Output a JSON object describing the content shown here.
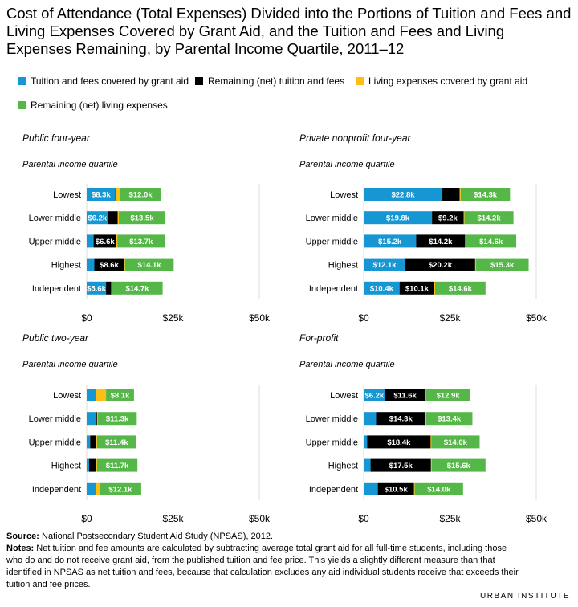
{
  "title": "Cost of Attendance (Total Expenses) Divided into the Portions of Tuition and Fees and Living Expenses Covered by Grant Aid, and the Tuition and Fees and Living Expenses Remaining, by Parental Income Quartile, 2011–12",
  "legend": [
    {
      "label": "Tuition and fees covered by grant aid",
      "color": "#1696d2"
    },
    {
      "label": "Remaining (net) tuition and fees",
      "color": "#000000"
    },
    {
      "label": "Living expenses covered by grant aid",
      "color": "#fdbf11"
    },
    {
      "label": "Remaining (net) living expenses",
      "color": "#55b748"
    }
  ],
  "chart_data": [
    {
      "type": "bar",
      "title": "Public four-year",
      "ylabel": "Parental income quartile",
      "categories": [
        "Lowest",
        "Lower middle",
        "Upper middle",
        "Highest",
        "Independent"
      ],
      "xticks": [
        "$0",
        "$25k",
        "$50k"
      ],
      "xlim": [
        0,
        50
      ],
      "series": [
        {
          "name": "Tuition and fees covered by grant aid",
          "values": [
            8.3,
            6.2,
            2.0,
            2.2,
            5.6
          ],
          "labels": [
            "$8.3k",
            "$6.2k",
            "",
            "",
            "$5.6k"
          ]
        },
        {
          "name": "Remaining (net) tuition and fees",
          "values": [
            0.3,
            2.8,
            6.6,
            8.6,
            1.5
          ],
          "labels": [
            "",
            "",
            "$6.6k",
            "$8.6k",
            ""
          ]
        },
        {
          "name": "Living expenses covered by grant aid",
          "values": [
            1.0,
            0.3,
            0.3,
            0.3,
            0.2
          ],
          "labels": [
            "",
            "",
            "",
            "",
            ""
          ]
        },
        {
          "name": "Remaining (net) living expenses",
          "values": [
            12.0,
            13.5,
            13.7,
            14.1,
            14.7
          ],
          "labels": [
            "$12.0k",
            "$13.5k",
            "$13.7k",
            "$14.1k",
            "$14.7k"
          ]
        }
      ]
    },
    {
      "type": "bar",
      "title": "Private nonprofit four-year",
      "ylabel": "Parental income quartile",
      "categories": [
        "Lowest",
        "Lower middle",
        "Upper middle",
        "Highest",
        "Independent"
      ],
      "xticks": [
        "$0",
        "$25k",
        "$50k"
      ],
      "xlim": [
        0,
        50
      ],
      "series": [
        {
          "name": "Tuition and fees covered by grant aid",
          "values": [
            22.8,
            19.8,
            15.2,
            12.1,
            10.4
          ],
          "labels": [
            "$22.8k",
            "$19.8k",
            "$15.2k",
            "$12.1k",
            "$10.4k"
          ]
        },
        {
          "name": "Remaining (net) tuition and fees",
          "values": [
            5.0,
            9.2,
            14.2,
            20.2,
            10.1
          ],
          "labels": [
            "",
            "$9.2k",
            "$14.2k",
            "$20.2k",
            "$10.1k"
          ]
        },
        {
          "name": "Living expenses covered by grant aid",
          "values": [
            0.3,
            0.2,
            0.2,
            0.2,
            0.2
          ],
          "labels": [
            "",
            "",
            "",
            "",
            ""
          ]
        },
        {
          "name": "Remaining (net) living expenses",
          "values": [
            14.3,
            14.2,
            14.6,
            15.3,
            14.6
          ],
          "labels": [
            "$14.3k",
            "$14.2k",
            "$14.6k",
            "$15.3k",
            "$14.6k"
          ]
        }
      ]
    },
    {
      "type": "bar",
      "title": "Public two-year",
      "ylabel": "Parental income quartile",
      "categories": [
        "Lowest",
        "Lower middle",
        "Upper middle",
        "Highest",
        "Independent"
      ],
      "xticks": [
        "$0",
        "$25k",
        "$50k"
      ],
      "xlim": [
        0,
        50
      ],
      "series": [
        {
          "name": "Tuition and fees covered by grant aid",
          "values": [
            2.7,
            2.7,
            1.0,
            0.7,
            2.6
          ],
          "labels": [
            "",
            "",
            "",
            "",
            ""
          ]
        },
        {
          "name": "Remaining (net) tuition and fees",
          "values": [
            0.1,
            0.3,
            1.8,
            2.1,
            0.1
          ],
          "labels": [
            "",
            "",
            "",
            "",
            ""
          ]
        },
        {
          "name": "Living expenses covered by grant aid",
          "values": [
            2.8,
            0.2,
            0.2,
            0.2,
            1.0
          ],
          "labels": [
            "",
            "",
            "",
            "",
            ""
          ]
        },
        {
          "name": "Remaining (net) living expenses",
          "values": [
            8.1,
            11.3,
            11.4,
            11.7,
            12.1
          ],
          "labels": [
            "$8.1k",
            "$11.3k",
            "$11.4k",
            "$11.7k",
            "$12.1k"
          ]
        }
      ]
    },
    {
      "type": "bar",
      "title": "For-profit",
      "ylabel": "Parental income quartile",
      "categories": [
        "Lowest",
        "Lower middle",
        "Upper middle",
        "Highest",
        "Independent"
      ],
      "xticks": [
        "$0",
        "$25k",
        "$50k"
      ],
      "xlim": [
        0,
        50
      ],
      "series": [
        {
          "name": "Tuition and fees covered by grant aid",
          "values": [
            6.2,
            3.6,
            1.0,
            2.0,
            4.1
          ],
          "labels": [
            "$6.2k",
            "",
            "",
            "",
            ""
          ]
        },
        {
          "name": "Remaining (net) tuition and fees",
          "values": [
            11.6,
            14.3,
            18.4,
            17.5,
            10.5
          ],
          "labels": [
            "$11.6k",
            "$14.3k",
            "$18.4k",
            "$17.5k",
            "$10.5k"
          ]
        },
        {
          "name": "Living expenses covered by grant aid",
          "values": [
            0.2,
            0.2,
            0.2,
            0.2,
            0.2
          ],
          "labels": [
            "",
            "",
            "",
            "",
            ""
          ]
        },
        {
          "name": "Remaining (net) living expenses",
          "values": [
            12.9,
            13.4,
            14.0,
            15.6,
            14.0
          ],
          "labels": [
            "$12.9k",
            "$13.4k",
            "$14.0k",
            "$15.6k",
            "$14.0k"
          ]
        }
      ]
    }
  ],
  "footer": {
    "source_label": "Source:",
    "source_text": " National Postsecondary Student Aid Study (NPSAS), 2012.",
    "notes_label": "Notes:",
    "notes_text": " Net tuition and fee amounts are calculated by subtracting average total grant aid for all full-time students, including those who do and do not receive grant aid, from the published tuition and fee price. This yields a slightly different measure than that identified in NPSAS as net tuition and fees, because that calculation excludes any aid individual students receive that exceeds their tuition and fee prices."
  },
  "brand": "URBAN INSTITUTE"
}
